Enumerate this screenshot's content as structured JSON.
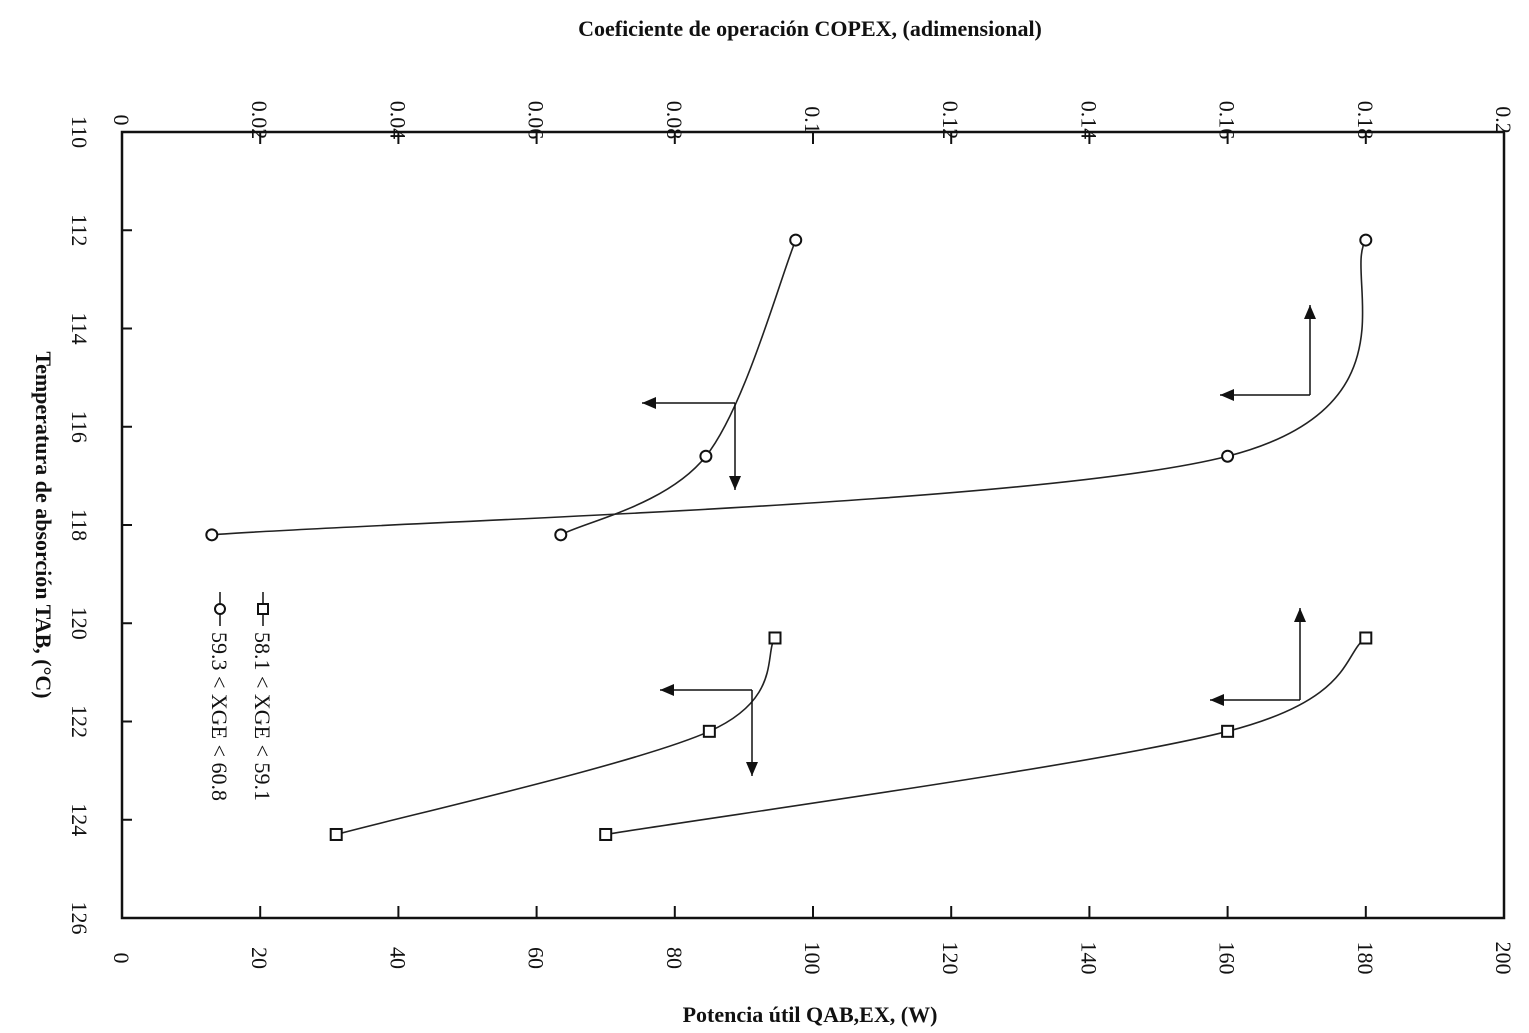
{
  "chart_data": {
    "type": "scatter",
    "top_axis": {
      "label": "Coeficiente de operación COPEX, (adimensional)",
      "range": [
        0,
        0.2
      ],
      "ticks": [
        "0",
        "0.02",
        "0.04",
        "0.06",
        "0.08",
        "0.1",
        "0.12",
        "0.14",
        "0.16",
        "0.18",
        "0.2"
      ]
    },
    "bottom_axis": {
      "label": "Potencia útil QAB,EX, (W)",
      "range": [
        0,
        200
      ],
      "ticks": [
        "0",
        "20",
        "40",
        "60",
        "80",
        "100",
        "120",
        "140",
        "160",
        "180",
        "200"
      ]
    },
    "left_axis": {
      "label": "Temperatura de absorción TAB, (°C)",
      "range": [
        110,
        126
      ],
      "ticks": [
        "110",
        "112",
        "114",
        "116",
        "118",
        "120",
        "122",
        "124",
        "126"
      ]
    },
    "series": [
      {
        "name": "58.1 < XGE < 59.1",
        "marker": "square",
        "curves": [
          {
            "x_axis": "top",
            "temperature": [
              120.3,
              122.2,
              124.3
            ],
            "value": [
              0.0945,
              0.085,
              0.031
            ]
          },
          {
            "x_axis": "bottom",
            "temperature": [
              120.3,
              122.2,
              124.3
            ],
            "value": [
              180,
              160,
              70
            ]
          }
        ]
      },
      {
        "name": "59.3 < XGE < 60.8",
        "marker": "circle",
        "curves": [
          {
            "x_axis": "top",
            "temperature": [
              112.2,
              116.6,
              118.2
            ],
            "value": [
              0.0975,
              0.0845,
              0.0635
            ]
          },
          {
            "x_axis": "bottom",
            "temperature": [
              112.2,
              116.6,
              118.2
            ],
            "value": [
              180,
              160,
              13
            ]
          }
        ]
      }
    ],
    "legend": {
      "placement": "inside-bottom-left",
      "entries": [
        {
          "marker": "square",
          "text": "58.1 < XGE < 59.1"
        },
        {
          "marker": "circle",
          "text": "59.3 < XGE < 60.8"
        }
      ]
    },
    "grid": false
  }
}
